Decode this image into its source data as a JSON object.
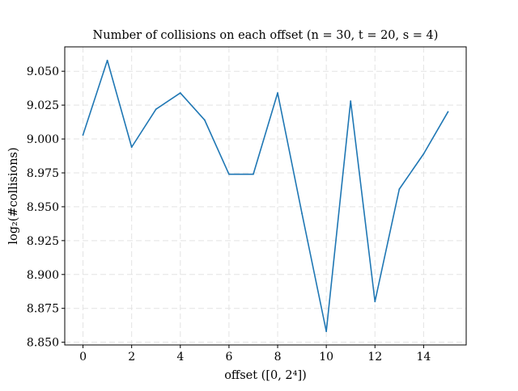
{
  "chart_data": {
    "type": "line",
    "title": "Number of collisions on each offset (n = 30, t = 20, s = 4)",
    "xlabel": "offset ([0, 2⁴])",
    "ylabel": "log₂(#collisions)",
    "x": [
      0,
      1,
      2,
      3,
      4,
      5,
      6,
      7,
      8,
      9,
      10,
      11,
      12,
      13,
      14,
      15
    ],
    "series": [
      {
        "values": [
          9.003,
          9.058,
          8.994,
          9.022,
          9.034,
          9.014,
          8.974,
          8.974,
          9.034,
          8.945,
          8.858,
          9.028,
          8.88,
          8.963,
          8.989,
          9.02
        ],
        "color": "#1f77b4"
      }
    ],
    "xlim": [
      -0.75,
      15.75
    ],
    "ylim": [
      8.848,
      9.068
    ],
    "xticks": [
      0,
      2,
      4,
      6,
      8,
      10,
      12,
      14
    ],
    "xtick_labels": [
      "0",
      "2",
      "4",
      "6",
      "8",
      "10",
      "12",
      "14"
    ],
    "yticks": [
      8.85,
      8.875,
      8.9,
      8.925,
      8.95,
      8.975,
      9.0,
      9.025,
      9.05
    ],
    "ytick_labels": [
      "8.850",
      "8.875",
      "8.900",
      "8.925",
      "8.950",
      "8.975",
      "9.000",
      "9.025",
      "9.050"
    ],
    "grid": true,
    "legend": false
  }
}
